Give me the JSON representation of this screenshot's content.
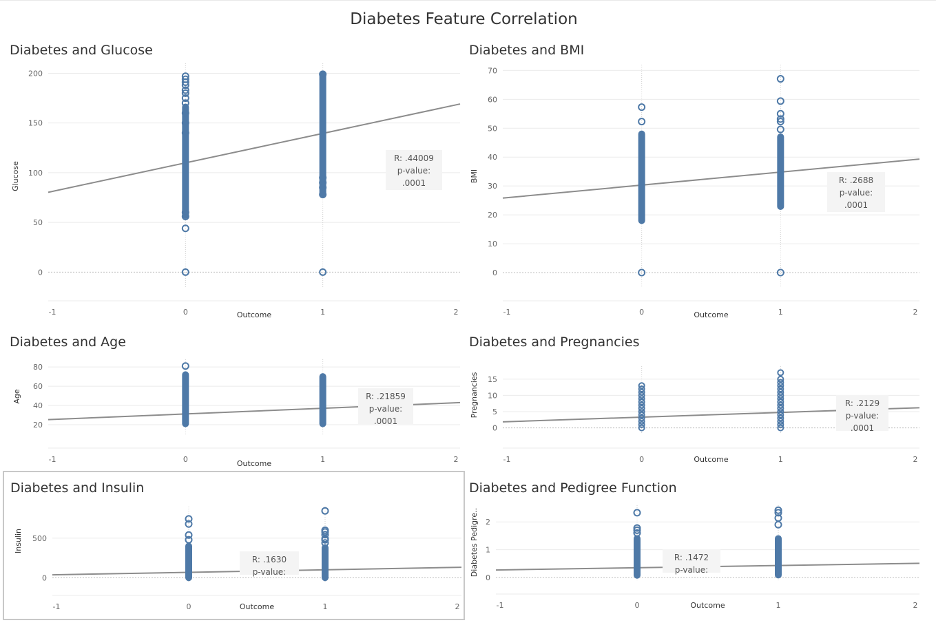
{
  "dashboard": {
    "title": "Diabetes Feature Correlation",
    "colors": {
      "marker": "#4e79a7",
      "trend": "#8c8c8c",
      "grid": "#ebebeb",
      "annotation_bg": "#f4f4f4"
    }
  },
  "chart_data": [
    {
      "type": "scatter",
      "title": "Diabetes and Glucose",
      "xlabel": "Outcome",
      "ylabel": "Glucose",
      "xlim": [
        -1,
        2
      ],
      "ylim": [
        -15,
        210
      ],
      "xticks": [
        "-1",
        "0",
        "1",
        "2"
      ],
      "yticks": [
        0,
        50,
        100,
        150,
        200
      ],
      "series": [
        {
          "x": 0,
          "dense_range": [
            57,
            166
          ],
          "points": [
            0,
            44,
            56,
            60,
            140,
            150,
            160,
            170,
            175,
            180,
            183,
            188,
            191,
            194,
            197
          ]
        },
        {
          "x": 1,
          "dense_range": [
            79,
            199
          ],
          "points": [
            0,
            78,
            85,
            90,
            95,
            199
          ]
        }
      ],
      "trend": {
        "slope": 29.6,
        "intercept": 109.9
      },
      "annotation": {
        "r": "R: .44009",
        "p_label": "p-value:",
        "p": ".0001"
      }
    },
    {
      "type": "scatter",
      "title": "Diabetes and BMI",
      "xlabel": "Outcome",
      "ylabel": "BMI",
      "xlim": [
        -1,
        2
      ],
      "ylim": [
        -5,
        72
      ],
      "xticks": [
        "-1",
        "0",
        "1",
        "2"
      ],
      "yticks": [
        0,
        10,
        20,
        30,
        40,
        50,
        60,
        70
      ],
      "series": [
        {
          "x": 0,
          "dense_range": [
            18,
            48
          ],
          "points": [
            0,
            52.3,
            57.3
          ]
        },
        {
          "x": 1,
          "dense_range": [
            22.9,
            47
          ],
          "points": [
            0,
            49.6,
            52.3,
            53.2,
            55,
            59.4,
            67.1
          ]
        }
      ],
      "trend": {
        "slope": 4.5,
        "intercept": 30.3
      },
      "annotation": {
        "r": "R: .2688",
        "p_label": "p-value:",
        "p": ".0001"
      }
    },
    {
      "type": "scatter",
      "title": "Diabetes and Age",
      "xlabel": "Outcome",
      "ylabel": "Age",
      "xlim": [
        -1,
        2
      ],
      "ylim": [
        10,
        88
      ],
      "xticks": [
        "-1",
        "0",
        "1",
        "2"
      ],
      "yticks": [
        20,
        40,
        60,
        80
      ],
      "series": [
        {
          "x": 0,
          "dense_range": [
            21,
            72
          ],
          "points": [
            81
          ]
        },
        {
          "x": 1,
          "dense_range": [
            21,
            70
          ],
          "points": []
        }
      ],
      "trend": {
        "slope": 5.9,
        "intercept": 31.2
      },
      "annotation": {
        "r": "R: .21859",
        "p_label": "p-value:",
        "p": ".0001"
      }
    },
    {
      "type": "scatter",
      "title": "Diabetes and Pregnancies",
      "xlabel": "Outcome",
      "ylabel": "Pregnancies",
      "xlim": [
        -1,
        2
      ],
      "ylim": [
        -2,
        19
      ],
      "xticks": [
        "-1",
        "0",
        "1",
        "2"
      ],
      "yticks": [
        0,
        5,
        10,
        15
      ],
      "discrete_x0": [
        0,
        1,
        2,
        3,
        4,
        5,
        6,
        7,
        8,
        9,
        10,
        11,
        12,
        13
      ],
      "discrete_x1": [
        0,
        1,
        2,
        3,
        4,
        5,
        6,
        7,
        8,
        9,
        10,
        11,
        12,
        13,
        14,
        15,
        17
      ],
      "trend": {
        "slope": 1.45,
        "intercept": 3.3
      },
      "annotation": {
        "r": "R: .2129",
        "p_label": "p-value:",
        "p": ".0001"
      }
    },
    {
      "type": "scatter",
      "title": "Diabetes and Insulin",
      "xlabel": "Outcome",
      "ylabel": "Insulin",
      "xlim": [
        -1,
        2
      ],
      "ylim": [
        -50,
        900
      ],
      "xticks": [
        "-1",
        "0",
        "1",
        "2"
      ],
      "yticks": [
        0,
        500
      ],
      "series": [
        {
          "x": 0,
          "dense_range": [
            0,
            400
          ],
          "points": [
            480,
            540,
            680,
            744
          ]
        },
        {
          "x": 1,
          "dense_range": [
            0,
            380
          ],
          "points": [
            440,
            480,
            495,
            545,
            580,
            600,
            846
          ]
        }
      ],
      "trend": {
        "slope": 32,
        "intercept": 68
      },
      "annotation": {
        "r": "R: .1630",
        "p_label": "p-value:",
        "p": ""
      }
    },
    {
      "type": "scatter",
      "title": "Diabetes and Pedigree Function",
      "xlabel": "Outcome",
      "ylabel": "Diabetes Pedigre..",
      "xlim": [
        -1,
        2
      ],
      "ylim": [
        -0.1,
        2.6
      ],
      "xticks": [
        "-1",
        "0",
        "1",
        "2"
      ],
      "yticks": [
        0,
        1,
        2
      ],
      "series": [
        {
          "x": 0,
          "dense_range": [
            0.08,
            1.4
          ],
          "points": [
            1.6,
            1.7,
            1.78,
            2.33
          ]
        },
        {
          "x": 1,
          "dense_range": [
            0.09,
            1.4
          ],
          "points": [
            1.9,
            2.14,
            2.33,
            2.42
          ]
        }
      ],
      "trend": {
        "slope": 0.08,
        "intercept": 0.35
      },
      "annotation": {
        "r": "R: .1472",
        "p_label": "p-value:",
        "p": ""
      }
    }
  ]
}
